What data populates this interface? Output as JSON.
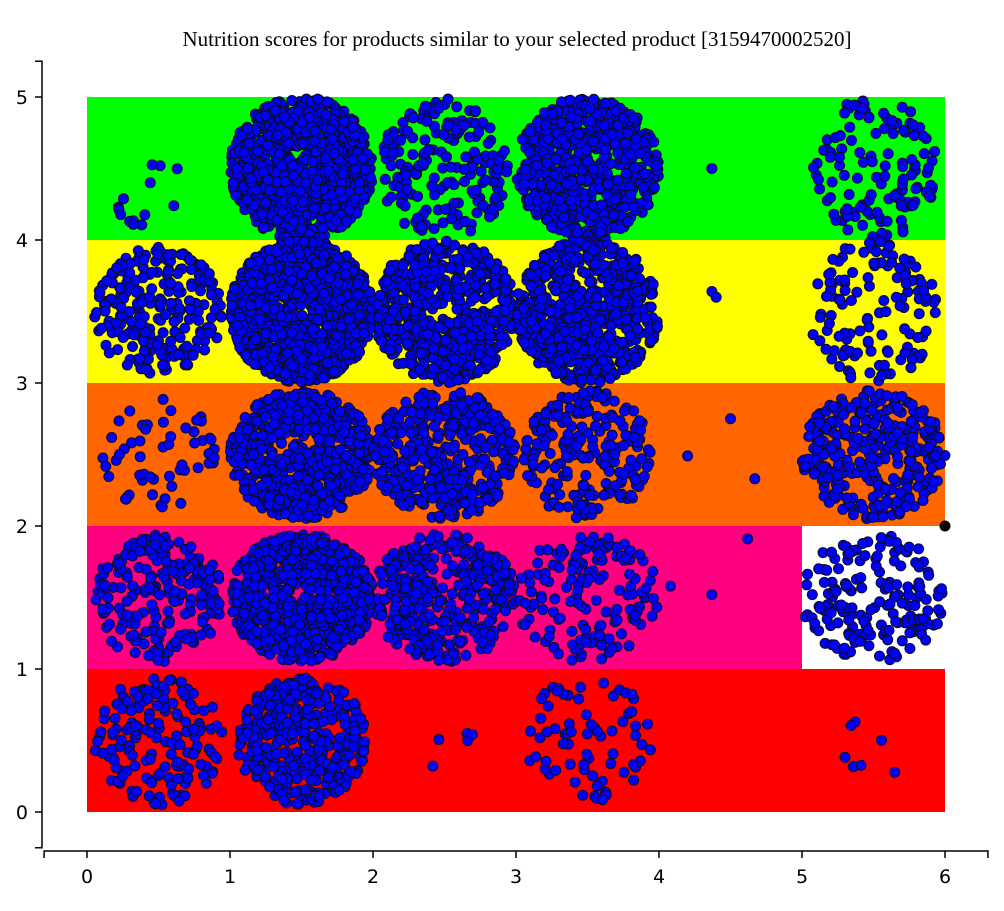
{
  "chart_data": {
    "type": "scatter",
    "title": "Nutrition scores for products similar to your selected product [3159470002520]",
    "xlabel": "",
    "ylabel": "",
    "xlim": [
      -0.3,
      6.3
    ],
    "ylim": [
      -0.25,
      5.25
    ],
    "x_ticks": [
      "0",
      "1",
      "2",
      "3",
      "4",
      "5",
      "6"
    ],
    "y_ticks": [
      "0",
      "1",
      "2",
      "3",
      "4",
      "5"
    ],
    "grid": false,
    "legend": "none",
    "bands": [
      {
        "y0": 0,
        "y1": 1,
        "x0": 0,
        "x1": 6,
        "color": "#ff0000"
      },
      {
        "y0": 1,
        "y1": 2,
        "x0": 0,
        "x1": 6,
        "color": "#ff0080"
      },
      {
        "y0": 1,
        "y1": 2,
        "x0": 5,
        "x1": 6,
        "color": "#ffffff"
      },
      {
        "y0": 2,
        "y1": 3,
        "x0": 0,
        "x1": 6,
        "color": "#ff6600"
      },
      {
        "y0": 3,
        "y1": 4,
        "x0": 0,
        "x1": 6,
        "color": "#ffff00"
      },
      {
        "y0": 4,
        "y1": 5,
        "x0": 0,
        "x1": 6,
        "color": "#00ff00"
      }
    ],
    "point_color": "#0000ff",
    "selected_point": {
      "x": 6,
      "y": 2,
      "color": "#000000"
    },
    "clusters": [
      {
        "cx": 0.5,
        "cy": 4.3,
        "rx": 0.3,
        "ry": 0.35,
        "n": 14
      },
      {
        "cx": 1.5,
        "cy": 4.5,
        "rx": 0.5,
        "ry": 0.5,
        "n": 900
      },
      {
        "cx": 2.5,
        "cy": 4.5,
        "rx": 0.45,
        "ry": 0.5,
        "n": 190
      },
      {
        "cx": 3.5,
        "cy": 4.5,
        "rx": 0.5,
        "ry": 0.5,
        "n": 650
      },
      {
        "cx": 5.5,
        "cy": 4.5,
        "rx": 0.45,
        "ry": 0.5,
        "n": 130
      },
      {
        "cx": 0.5,
        "cy": 3.5,
        "rx": 0.45,
        "ry": 0.45,
        "n": 240
      },
      {
        "cx": 1.5,
        "cy": 3.5,
        "rx": 0.5,
        "ry": 0.5,
        "n": 1200
      },
      {
        "cx": 2.5,
        "cy": 3.5,
        "rx": 0.5,
        "ry": 0.5,
        "n": 600
      },
      {
        "cx": 3.5,
        "cy": 3.5,
        "rx": 0.5,
        "ry": 0.5,
        "n": 650
      },
      {
        "cx": 5.5,
        "cy": 3.5,
        "rx": 0.45,
        "ry": 0.5,
        "n": 130
      },
      {
        "cx": 0.5,
        "cy": 2.5,
        "rx": 0.4,
        "ry": 0.4,
        "n": 55
      },
      {
        "cx": 1.5,
        "cy": 2.5,
        "rx": 0.5,
        "ry": 0.45,
        "n": 600
      },
      {
        "cx": 2.5,
        "cy": 2.5,
        "rx": 0.5,
        "ry": 0.45,
        "n": 430
      },
      {
        "cx": 3.5,
        "cy": 2.5,
        "rx": 0.45,
        "ry": 0.45,
        "n": 210
      },
      {
        "cx": 5.5,
        "cy": 2.5,
        "rx": 0.5,
        "ry": 0.45,
        "n": 320
      },
      {
        "cx": 0.5,
        "cy": 1.5,
        "rx": 0.45,
        "ry": 0.45,
        "n": 210
      },
      {
        "cx": 1.5,
        "cy": 1.5,
        "rx": 0.5,
        "ry": 0.45,
        "n": 750
      },
      {
        "cx": 2.5,
        "cy": 1.5,
        "rx": 0.5,
        "ry": 0.45,
        "n": 360
      },
      {
        "cx": 3.5,
        "cy": 1.5,
        "rx": 0.5,
        "ry": 0.45,
        "n": 150
      },
      {
        "cx": 5.5,
        "cy": 1.5,
        "rx": 0.5,
        "ry": 0.45,
        "n": 180
      },
      {
        "cx": 0.5,
        "cy": 0.5,
        "rx": 0.45,
        "ry": 0.45,
        "n": 150
      },
      {
        "cx": 1.5,
        "cy": 0.5,
        "rx": 0.45,
        "ry": 0.45,
        "n": 380
      },
      {
        "cx": 2.5,
        "cy": 0.5,
        "rx": 0.2,
        "ry": 0.2,
        "n": 5
      },
      {
        "cx": 3.5,
        "cy": 0.5,
        "rx": 0.45,
        "ry": 0.45,
        "n": 70
      },
      {
        "cx": 5.5,
        "cy": 0.5,
        "rx": 0.4,
        "ry": 0.3,
        "n": 7
      }
    ],
    "isolated_points": [
      {
        "x": 4.37,
        "y": 4.5
      },
      {
        "x": 4.37,
        "y": 3.64
      },
      {
        "x": 4.4,
        "y": 3.6
      },
      {
        "x": 4.5,
        "y": 2.75
      },
      {
        "x": 4.2,
        "y": 2.49
      },
      {
        "x": 4.67,
        "y": 2.33
      },
      {
        "x": 4.62,
        "y": 1.91
      },
      {
        "x": 4.37,
        "y": 1.52
      },
      {
        "x": 4.08,
        "y": 1.58
      }
    ]
  }
}
